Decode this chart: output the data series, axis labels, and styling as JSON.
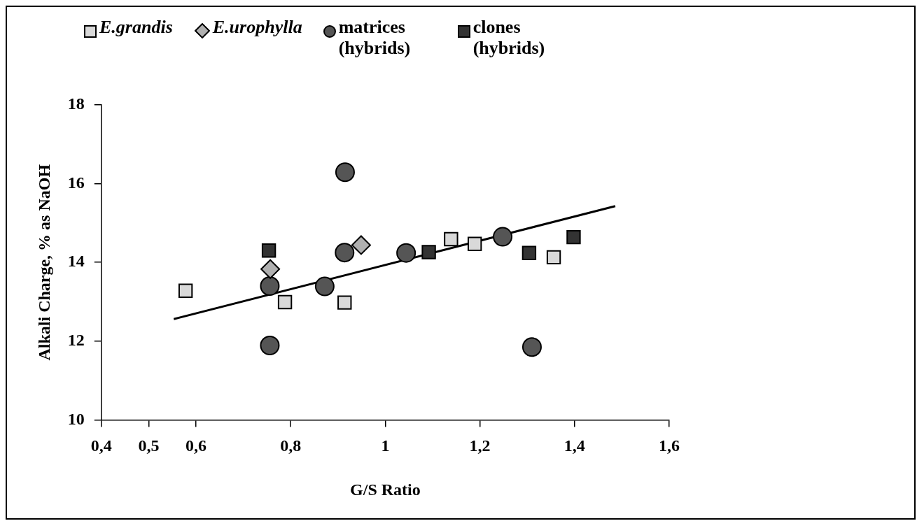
{
  "chart_data": {
    "type": "scatter",
    "xlabel": "G/S Ratio",
    "ylabel": "Alkali Charge, % as NaOH",
    "xlim": [
      0.4,
      1.6
    ],
    "xticks": [
      {
        "value": 0.4,
        "label": "0,4"
      },
      {
        "value": 0.5,
        "label": "0,5"
      },
      {
        "value": 0.6,
        "label": "0,6"
      },
      {
        "value": 0.8,
        "label": "0,8"
      },
      1,
      {
        "value": 1.2,
        "label": "1,2"
      },
      {
        "value": 1.4,
        "label": "1,4"
      },
      {
        "value": 1.6,
        "label": "1,6"
      }
    ],
    "ylim": [
      10,
      18
    ],
    "yticks": [
      10,
      12,
      14,
      16,
      18
    ],
    "grid": false,
    "legend": "top",
    "series": [
      {
        "name": "E.grandis",
        "color": "#d9d9d9",
        "marker": "square",
        "x": [
          0.578,
          0.788,
          0.914,
          1.139,
          1.189,
          1.356
        ],
        "values": [
          13.28,
          12.99,
          12.98,
          14.59,
          14.47,
          14.13
        ]
      },
      {
        "name": "E.urophylla",
        "color": "#b0b0b0",
        "marker": "diamond",
        "x": [
          0.757,
          0.949
        ],
        "values": [
          13.83,
          14.44
        ]
      },
      {
        "name": "matrices (hybrids)",
        "color": "#555555",
        "marker": "circle",
        "x": [
          0.915,
          0.756,
          0.756,
          0.872,
          0.914,
          1.044,
          1.248,
          1.31
        ],
        "values": [
          16.29,
          13.4,
          11.89,
          13.39,
          14.25,
          14.24,
          14.65,
          11.85
        ]
      },
      {
        "name": "clones (hybrids)",
        "color": "#333333",
        "marker": "square",
        "x": [
          0.754,
          1.092,
          1.304,
          1.398
        ],
        "values": [
          14.3,
          14.26,
          14.24,
          14.64
        ]
      },
      {
        "type": "line",
        "color": "#000000",
        "marker": "none",
        "line_style": "solid",
        "x": [
          0.553,
          1.486
        ],
        "values": [
          12.56,
          15.43
        ]
      }
    ]
  }
}
